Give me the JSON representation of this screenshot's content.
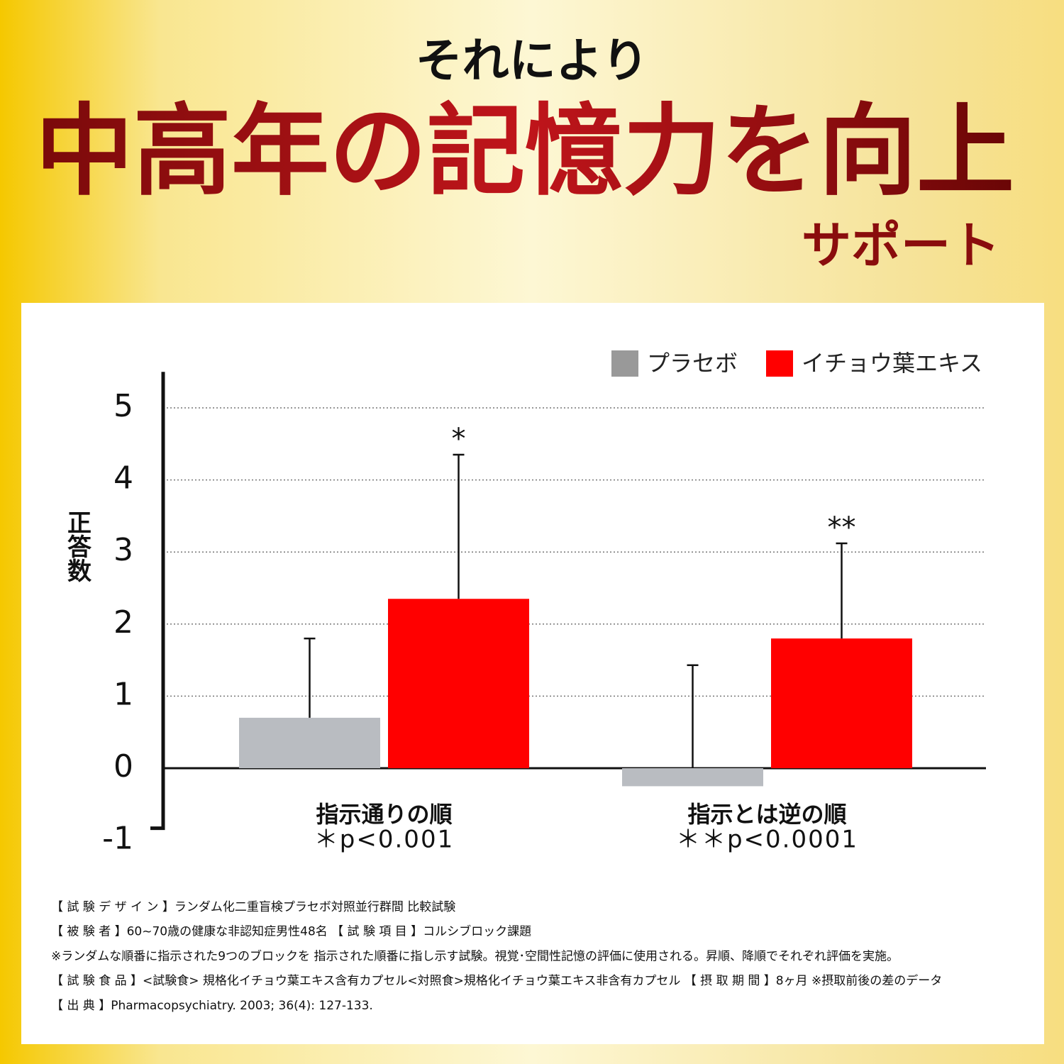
{
  "header": {
    "lead": "それにより",
    "title": "中高年の記憶力を向上",
    "tail": "サポート"
  },
  "chart_data": {
    "type": "bar",
    "y_label": "正答数",
    "categories": [
      "指示通りの順",
      "指示とは逆の順"
    ],
    "category_notes": [
      "＊p<0.001",
      "＊＊p<0.0001"
    ],
    "series": [
      {
        "name": "プラセボ",
        "color": "#b9bcc1",
        "legend_color": "#999999",
        "values": [
          0.7,
          -0.25
        ],
        "errors": [
          1.1,
          1.68
        ]
      },
      {
        "name": "イチョウ葉エキス",
        "color": "#ff0000",
        "legend_color": "#ff0000",
        "values": [
          2.35,
          1.8
        ],
        "errors": [
          2.0,
          1.32
        ],
        "annotations": [
          "*",
          "**"
        ]
      }
    ],
    "ylim": [
      -1,
      5.5
    ],
    "yticks": [
      -1,
      0,
      1,
      2,
      3,
      4,
      5
    ],
    "grid": true
  },
  "notes": [
    "【 試 験 デ ザ イ ン 】ランダム化二重盲検プラセボ対照並行群間 比較試験",
    "【 被 験 者 】60~70歳の健康な非認知症男性48名 【 試 験 項 目 】コルシブロック課題",
    "※ランダムな順番に指示された9つのブロックを 指示された順番に指し示す試験。視覚･空間性記憶の評価に使用される。昇順、降順でそれぞれ評価を実施。",
    "【 試 験 食 品 】<試験食> 規格化イチョウ葉エキス含有カプセル<対照食>規格化イチョウ葉エキス非含有カプセル 【 摂 取 期 間 】8ヶ月 ※摂取前後の差のデータ",
    "【 出 典 】Pharmacopsychiatry. 2003; 36(4): 127-133."
  ]
}
